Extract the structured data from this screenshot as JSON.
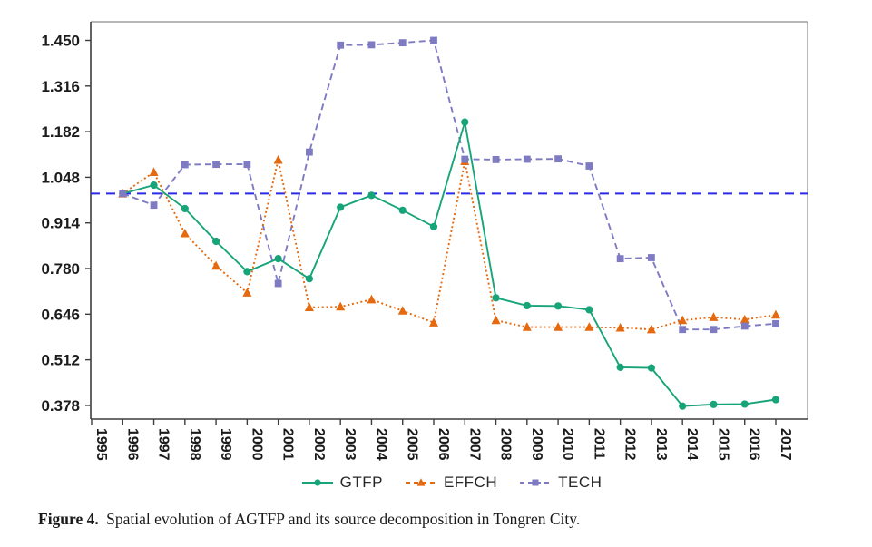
{
  "figure": {
    "caption_label": "Figure 4.",
    "caption_text": "Spatial evolution of AGTFP and its source decomposition in Tongren City."
  },
  "chart_data": {
    "type": "line",
    "title": "",
    "xlabel": "",
    "ylabel": "",
    "x_axis_ticks": [
      1995,
      1996,
      1997,
      1998,
      1999,
      2000,
      2001,
      2002,
      2003,
      2004,
      2005,
      2006,
      2007,
      2008,
      2009,
      2010,
      2011,
      2012,
      2013,
      2014,
      2015,
      2016,
      2017
    ],
    "x": [
      1996,
      1997,
      1998,
      1999,
      2000,
      2001,
      2002,
      2003,
      2004,
      2005,
      2006,
      2007,
      2008,
      2009,
      2010,
      2011,
      2012,
      2013,
      2014,
      2015,
      2016,
      2017
    ],
    "series": [
      {
        "name": "GTFP",
        "color": "#17a478",
        "line_style": "solid",
        "marker": "circle",
        "values": [
          1.0,
          1.025,
          0.956,
          0.86,
          0.771,
          0.809,
          0.75,
          0.96,
          0.995,
          0.951,
          0.903,
          1.21,
          0.694,
          0.671,
          0.67,
          0.659,
          0.49,
          0.488,
          0.376,
          0.381,
          0.382,
          0.395
        ]
      },
      {
        "name": "EFFCH",
        "color": "#e5690e",
        "line_style": "dotted",
        "marker": "triangle",
        "values": [
          1.0,
          1.063,
          0.883,
          0.788,
          0.709,
          1.099,
          0.666,
          0.668,
          0.689,
          0.656,
          0.621,
          1.095,
          0.628,
          0.608,
          0.608,
          0.608,
          0.606,
          0.601,
          0.628,
          0.637,
          0.63,
          0.644
        ]
      },
      {
        "name": "TECH",
        "color": "#7e7bc3",
        "line_style": "dashed",
        "marker": "square",
        "values": [
          1.0,
          0.966,
          1.085,
          1.086,
          1.086,
          0.736,
          1.122,
          1.436,
          1.437,
          1.443,
          1.45,
          1.101,
          1.1,
          1.101,
          1.102,
          1.081,
          0.809,
          0.812,
          0.601,
          0.601,
          0.611,
          0.618
        ]
      }
    ],
    "y_axis": {
      "tick_values": [
        1.45,
        1.316,
        1.182,
        1.048,
        0.914,
        0.78,
        0.646,
        0.512,
        0.378
      ],
      "tick_labels": [
        "1.450",
        "1.316",
        "1.182",
        "1.048",
        "0.914",
        "0.780",
        "0.646",
        "0.512",
        "0.378"
      ],
      "range_shown": [
        0.335,
        1.503
      ]
    },
    "reference_line": {
      "value": 1.0,
      "color": "#2a2ae8",
      "style": "dashed"
    },
    "grid": false,
    "legend_position": "bottom"
  }
}
